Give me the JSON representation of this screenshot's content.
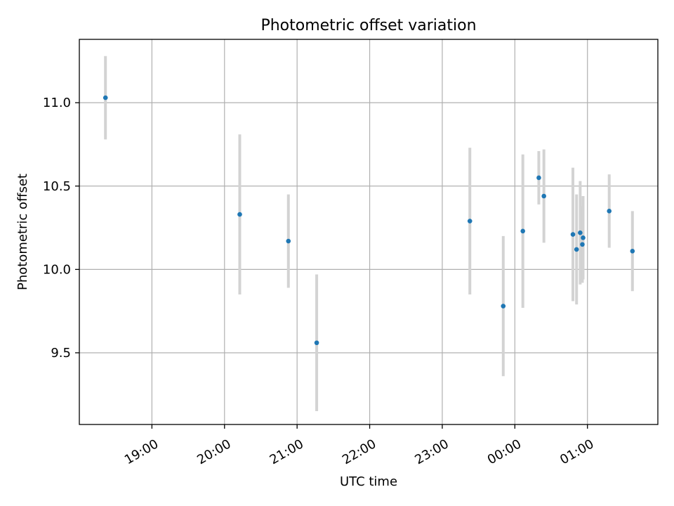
{
  "chart_data": {
    "type": "scatter",
    "title": "Photometric offset variation",
    "xlabel": "UTC time",
    "ylabel": "Photometric offset",
    "grid": true,
    "marker_color": "#1f77b4",
    "errorbar_color": "#d3d3d3",
    "x_unit": "hours since 18:00 UTC",
    "xlim": [
      0.0,
      7.97
    ],
    "ylim": [
      9.07,
      11.38
    ],
    "x_ticks": [
      {
        "value": 1.0,
        "label": "19:00"
      },
      {
        "value": 2.0,
        "label": "20:00"
      },
      {
        "value": 3.0,
        "label": "21:00"
      },
      {
        "value": 4.0,
        "label": "22:00"
      },
      {
        "value": 5.0,
        "label": "23:00"
      },
      {
        "value": 6.0,
        "label": "00:00"
      },
      {
        "value": 7.0,
        "label": "01:00"
      }
    ],
    "y_ticks": [
      {
        "value": 9.5,
        "label": "9.5"
      },
      {
        "value": 10.0,
        "label": "10.0"
      },
      {
        "value": 10.5,
        "label": "10.5"
      },
      {
        "value": 11.0,
        "label": "11.0"
      }
    ],
    "points": [
      {
        "x": 0.36,
        "y": 11.03,
        "err": 0.25
      },
      {
        "x": 2.21,
        "y": 10.33,
        "err": 0.48
      },
      {
        "x": 2.88,
        "y": 10.17,
        "err": 0.28
      },
      {
        "x": 3.27,
        "y": 9.56,
        "err": 0.41
      },
      {
        "x": 5.38,
        "y": 10.29,
        "err": 0.44
      },
      {
        "x": 5.84,
        "y": 9.78,
        "err": 0.42
      },
      {
        "x": 6.11,
        "y": 10.23,
        "err": 0.46
      },
      {
        "x": 6.33,
        "y": 10.55,
        "err": 0.16
      },
      {
        "x": 6.4,
        "y": 10.44,
        "err": 0.28
      },
      {
        "x": 6.8,
        "y": 10.21,
        "err": 0.4
      },
      {
        "x": 6.85,
        "y": 10.12,
        "err": 0.33
      },
      {
        "x": 6.9,
        "y": 10.22,
        "err": 0.31
      },
      {
        "x": 6.93,
        "y": 10.15,
        "err": 0.23
      },
      {
        "x": 6.94,
        "y": 10.19,
        "err": 0.25
      },
      {
        "x": 7.3,
        "y": 10.35,
        "err": 0.22
      },
      {
        "x": 7.62,
        "y": 10.11,
        "err": 0.24
      }
    ]
  }
}
